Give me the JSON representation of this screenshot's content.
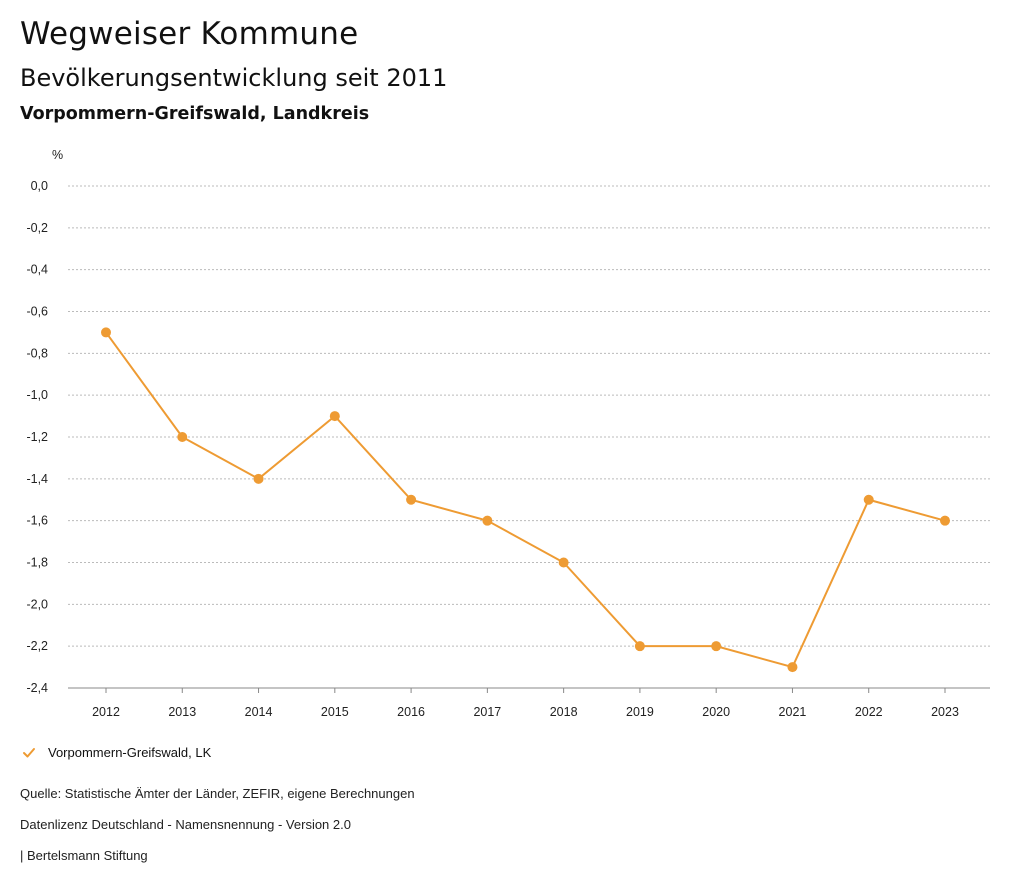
{
  "header": {
    "title": "Wegweiser Kommune",
    "subtitle": "Bevölkerungsentwicklung seit 2011",
    "region": "Vorpommern-Greifswald, Landkreis"
  },
  "chart_data": {
    "type": "line",
    "title": "Bevölkerungsentwicklung seit 2011",
    "ylabel": "%",
    "xlabel": "",
    "x": [
      "2012",
      "2013",
      "2014",
      "2015",
      "2016",
      "2017",
      "2018",
      "2019",
      "2020",
      "2021",
      "2022",
      "2023"
    ],
    "series": [
      {
        "name": "Vorpommern-Greifswald, LK",
        "color": "#ee9b33",
        "values": [
          -0.7,
          -1.2,
          -1.4,
          -1.1,
          -1.5,
          -1.6,
          -1.8,
          -2.2,
          -2.2,
          -2.3,
          -1.5,
          -1.6
        ]
      }
    ],
    "ylim": [
      -2.4,
      0.0
    ],
    "yticks": [
      0.0,
      -0.2,
      -0.4,
      -0.6,
      -0.8,
      -1.0,
      -1.2,
      -1.4,
      -1.6,
      -1.8,
      -2.0,
      -2.2,
      -2.4
    ],
    "ytick_labels": [
      "0,0",
      "-0,2",
      "-0,4",
      "-0,6",
      "-0,8",
      "-1,0",
      "-1,2",
      "-1,4",
      "-1,6",
      "-1,8",
      "-2,0",
      "-2,2",
      "-2,4"
    ],
    "grid": true,
    "legend": "bottom-left"
  },
  "legend": {
    "label": "Vorpommern-Greifswald, LK",
    "icon": "check-icon"
  },
  "footer": {
    "source": "Quelle: Statistische Ämter der Länder, ZEFIR, eigene Berechnungen",
    "license": "Datenlizenz Deutschland - Namensnennung - Version 2.0",
    "publisher": "| Bertelsmann Stiftung"
  }
}
